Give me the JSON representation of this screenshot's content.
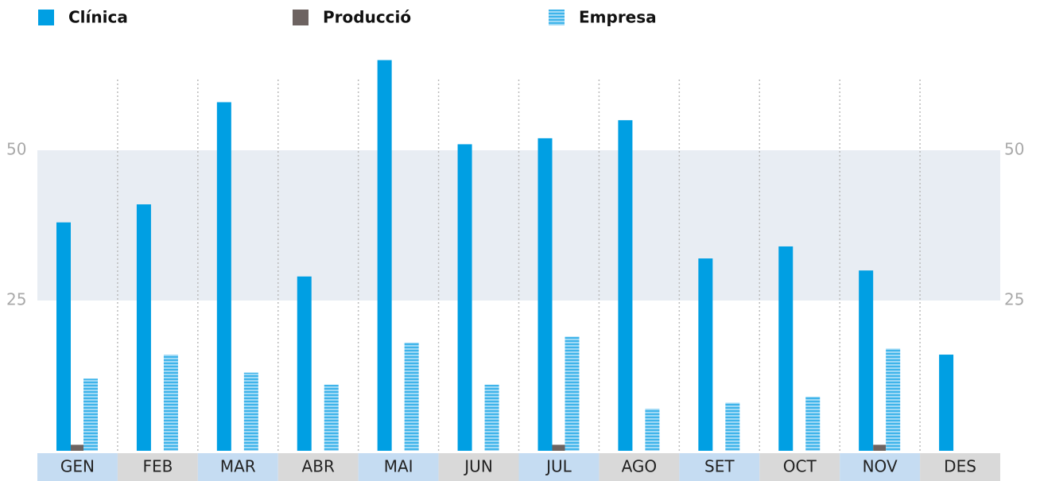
{
  "chart_data": {
    "type": "bar",
    "categories": [
      "GEN",
      "FEB",
      "MAR",
      "ABR",
      "MAI",
      "JUN",
      "JUL",
      "AGO",
      "SET",
      "OCT",
      "NOV",
      "DES"
    ],
    "series": [
      {
        "name": "Clínica",
        "color": "#009fe3",
        "values": [
          38,
          41,
          58,
          29,
          65,
          51,
          52,
          55,
          32,
          34,
          30,
          16
        ]
      },
      {
        "name": "Producció",
        "color": "#6d6361",
        "values": [
          1,
          0,
          0,
          0,
          0,
          0,
          1,
          0,
          0,
          0,
          1,
          0
        ]
      },
      {
        "name": "Empresa",
        "color": "#3fb4ea",
        "pattern": "stripes",
        "values": [
          12,
          16,
          13,
          11,
          18,
          11,
          19,
          7,
          8,
          9,
          17,
          0
        ]
      }
    ],
    "ylim": [
      0,
      70
    ],
    "yticks": [
      25,
      50
    ]
  }
}
